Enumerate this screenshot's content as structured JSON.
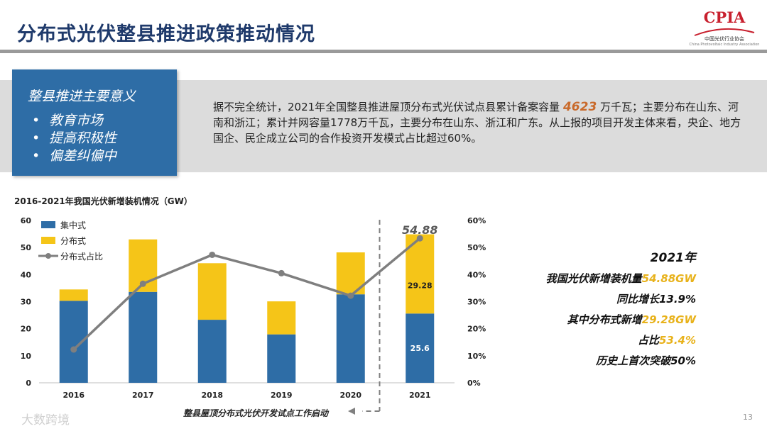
{
  "title": "分布式光伏整县推进政策推动情况",
  "logo": {
    "text": "CPIA",
    "subtitle": "中国光伏行业协会",
    "subtitle_en": "China Photovoltaic Industry Association"
  },
  "sidebox": {
    "title": "整县推进主要意义",
    "items": [
      "教育市场",
      "提高积极性",
      "偏差纠偏中"
    ]
  },
  "paragraph": {
    "before": "据不完全统计，2021年全国整县推进屋顶分布式光伏试点县累计备案容量 ",
    "highlight": "4623",
    "after": " 万千瓦；主要分布在山东、河南和浙江；累计并网容量1778万千瓦，主要分布在山东、浙江和广东。从上报的项目开发主体来看，央企、地方国企、民企成立公司的合作投资开发模式占比超过60%。"
  },
  "summary": {
    "year": "2021年",
    "line1_prefix": "我国光伏新增装机量",
    "line1_value": "54.88GW",
    "line2": "同比增长13.9%",
    "line3_prefix": "其中分布式新增",
    "line3_value": "29.28GW",
    "line4_prefix": "占比",
    "line4_value": "53.4%",
    "line5": "历史上首次突破50%"
  },
  "annotation": "整县屋顶分布式光伏开发试点工作启动",
  "page_number": "13",
  "watermark": "大数跨境",
  "colors": {
    "centralized": "#2e6da6",
    "distributed": "#f5c518",
    "share_line": "#7f7f7f",
    "title": "#1f3a6b"
  },
  "chart_data": {
    "type": "bar",
    "title": "2016-2021年我国光伏新增装机情况（GW）",
    "stacked": true,
    "categories": [
      "2016",
      "2017",
      "2018",
      "2019",
      "2020",
      "2021"
    ],
    "series": [
      {
        "name": "集中式",
        "values": [
          30.3,
          33.6,
          23.3,
          17.9,
          32.7,
          25.6
        ]
      },
      {
        "name": "分布式",
        "values": [
          4.2,
          19.4,
          20.9,
          12.2,
          15.5,
          29.28
        ]
      }
    ],
    "line_series": {
      "name": "分布式占比",
      "axis": "right",
      "values": [
        12.3,
        36.6,
        47.3,
        40.5,
        32.2,
        53.4
      ]
    },
    "y_left": {
      "min": 0,
      "max": 60,
      "ticks": [
        0,
        10,
        20,
        30,
        40,
        50,
        60
      ]
    },
    "y_right": {
      "min": 0,
      "max": 60,
      "ticks": [
        "0%",
        "10%",
        "20%",
        "30%",
        "40%",
        "50%",
        "60%"
      ]
    },
    "data_labels": {
      "total_2021": "54.88",
      "distributed_2021": "29.28",
      "centralized_2021": "25.6"
    },
    "legend_position": "top-left"
  }
}
